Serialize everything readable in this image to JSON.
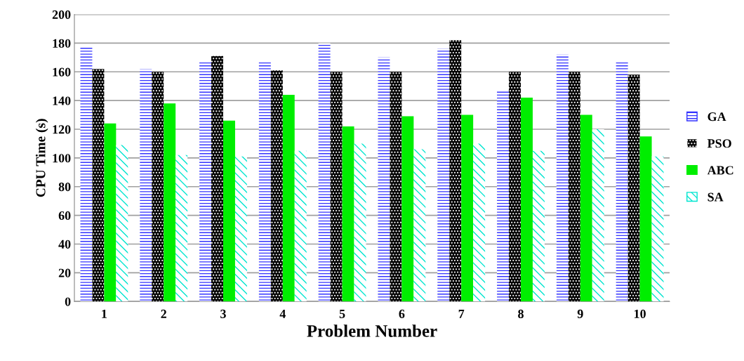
{
  "chart_data": {
    "type": "bar",
    "xlabel": "Problem Number",
    "ylabel": "CPU Time (s)",
    "categories": [
      "1",
      "2",
      "3",
      "4",
      "5",
      "6",
      "7",
      "8",
      "9",
      "10"
    ],
    "series": [
      {
        "name": "GA",
        "color": "#3333ff",
        "values": [
          177,
          162,
          168,
          168,
          180,
          170,
          176,
          147,
          172,
          167
        ]
      },
      {
        "name": "PSO",
        "color": "#000000",
        "values": [
          162,
          160,
          171,
          161,
          160,
          160,
          182,
          160,
          160,
          158
        ]
      },
      {
        "name": "ABC",
        "color": "#00ee00",
        "values": [
          124,
          138,
          126,
          144,
          122,
          129,
          130,
          142,
          130,
          115
        ]
      },
      {
        "name": "SA",
        "color": "#00e5d0",
        "values": [
          109,
          102,
          101,
          105,
          110,
          106,
          110,
          105,
          120,
          101
        ]
      }
    ],
    "ylim": [
      0,
      200
    ],
    "yticks": [
      0,
      20,
      40,
      60,
      80,
      100,
      120,
      140,
      160,
      180,
      200
    ],
    "grid": "y",
    "legend": "right"
  }
}
